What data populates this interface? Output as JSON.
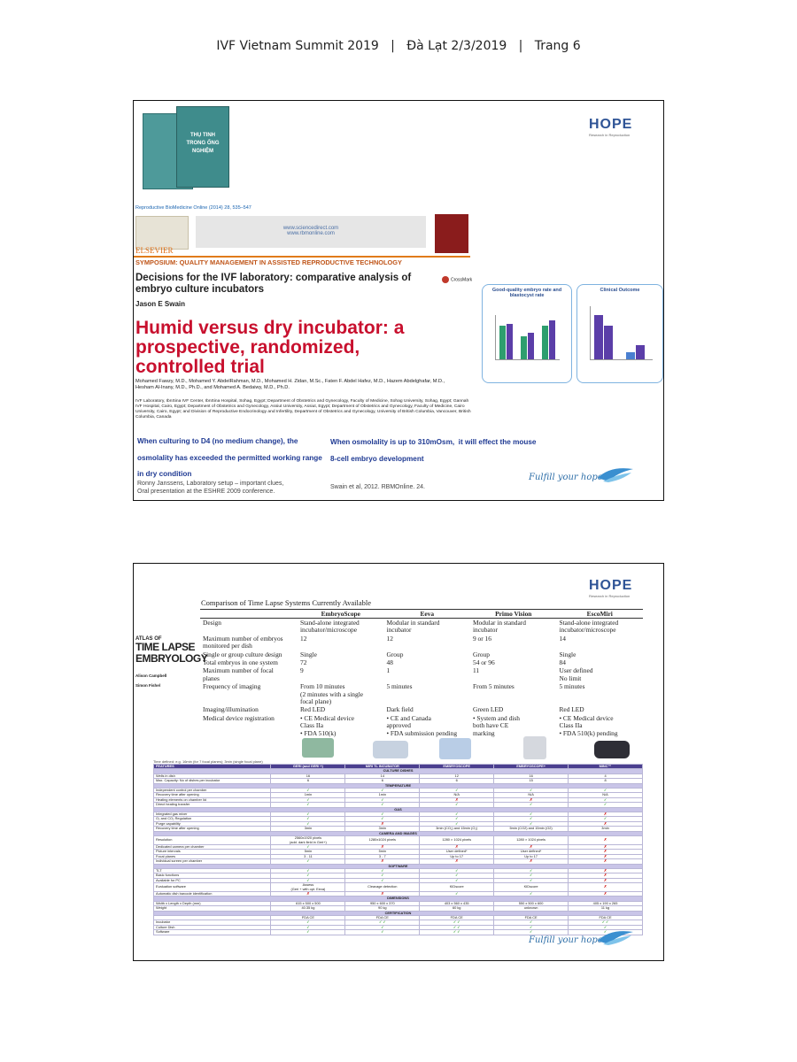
{
  "header": {
    "text": "IVF Vietnam Summit 2019   |   Đà Lạt 2/3/2019   |   Trang 6"
  },
  "slide1": {
    "book_title": "THỤ TINH TRONG ỐNG NGHIỆM",
    "journal_ref": "Reproductive BioMedicine Online (2014) 28, 535–547",
    "urls": "www.sciencedirect.com\nwww.rbmonline.com",
    "publisher": "ELSEVIER",
    "section": "SYMPOSIUM: QUALITY MANAGEMENT IN ASSISTED REPRODUCTIVE TECHNOLOGY",
    "paper_title": "Decisions for the IVF laboratory: comparative analysis of embryo culture incubators",
    "crossmark": "CrossMark",
    "paper_author": "Jason E Swain",
    "trial_title": "Humid versus dry incubator: a prospective, randomized, controlled trial",
    "trial_authors": "Mohamed Fawzy, M.D., Mohamed Y. AbdelRahman, M.D., Mohamed H. Zidan, M.Sc., Faten F. Abdel Hafez, M.D., Hazem Abdelghafar, M.D., Hesham Al-Inany, M.D., Ph.D., and Mohamed A. Bedaiwy, M.D., Ph.D.",
    "trial_affiliations": "IVF Laboratory, IbnSina IVF Center, IbnSina Hospital, Sohag, Egypt; Department of Obstetrics and Gynecology, Faculty of Medicine, Sohag University, Sohag, Egypt; Gannah IVF Hospital, Cairo, Egypt; Department of Obstetrics and Gynecology, Assiut University, Assiut, Egypt; Department of Obstetrics and Gynecology, Faculty of Medicine, Cairo University, Cairo, Egypt; and Division of Reproductive Endocrinology and Infertility, Department of Obstetrics and Gynecology, University of British Columbia, Vancouver, British Columbia, Canada",
    "logo": "HOPE",
    "logo_sub": "Research in Reproduction",
    "chart1_title": "Good-quality embryo rate and blastocyst rate",
    "chart2_title": "Clinical Outcome",
    "left_note": [
      "When culturing to D4 (no medium change), the",
      "osmolality has exceeded the permitted working range",
      "in dry condition"
    ],
    "left_source": "Ronny Janssens, Laboratory setup – important clues,\nOral presentation at the ESHRE 2009 conference.",
    "right_note": [
      "When osmolality is up to 310mOsm,  it will effect the mouse",
      "8-cell embryo development"
    ],
    "right_source": "Swain et al, 2012. RBMOnline. 24.",
    "tagline": "Fulfill your hope"
  },
  "slide2": {
    "logo": "HOPE",
    "logo_sub": "Research in Reproduction",
    "book": {
      "atlas": "ATLAS OF",
      "title": "TIME LAPSE\nEMBRYOLOGY",
      "editor1": "Alison Campbell",
      "editor2": "Simon Fishel"
    },
    "comparison": {
      "title": "Comparison of Time Lapse Systems Currently Available",
      "columns": [
        "",
        "EmbryoScope",
        "Eeva",
        "Primo Vision",
        "EscoMiri"
      ],
      "rows": [
        [
          "Design",
          "Stand-alone integrated\nincubator/microscope",
          "Modular in standard\nincubator",
          "Modular in standard\nincubator",
          "Stand-alone integrated\nincubator/microscope"
        ],
        [
          "Maximum number of embryos\n   monitored per dish",
          "12",
          "12",
          "9 or 16",
          "14"
        ],
        [
          "Single or group culture design",
          "Single",
          "Group",
          "Group",
          "Single"
        ],
        [
          "Total embryos in one system",
          "72",
          "48",
          "54 or 96",
          "84"
        ],
        [
          "Maximum number of focal\n   planes",
          "9",
          "1",
          "11",
          "User defined\nNo limit"
        ],
        [
          "Frequency of imaging",
          "From 10 minutes\n(2 minutes with a single\nfocal plane)",
          "5 minutes",
          "From 5 minutes",
          "5 minutes"
        ],
        [
          "Imaging/illumination",
          "Red LED",
          "Dark field",
          "Green LED",
          "Red LED"
        ],
        [
          "Medical device registration",
          "  • CE Medical device\n     Class IIa\n  • FDA 510(k)",
          "  • CE and Canada\n     approved\n  • FDA submission pending",
          "  • System and dish\n     both have CE\n     marking",
          "  • CE Medical device\n     Class IIa\n  • FDA 510(k) pending"
        ]
      ]
    },
    "features": {
      "note": "Time defined: e.g. 16min (for 7 focal planes); 3min (single focal plane)",
      "columns": [
        "FEATURES",
        "GERI (and GERI +)",
        "MIRI TL INCUBATOR",
        "EMBRYOSCOPE",
        "EMBRYOSCOPE+",
        "MINC™"
      ],
      "sections": [
        {
          "title": "CULTURE DISHES",
          "rows": [
            [
              "Wells in dish",
              "16",
              "14",
              "12",
              "16",
              "4"
            ],
            [
              "Max. Capacity: No of dishes per incubator",
              "6",
              "6",
              "6",
              "15",
              "8"
            ]
          ]
        },
        {
          "title": "TEMPERATURE",
          "rows": [
            [
              "Independent control per chamber",
              "✓",
              "✓",
              "✓",
              "✓",
              "✓"
            ],
            [
              "Recovery time after opening",
              "1min",
              "1min",
              "N/A",
              "N/A",
              "N/A"
            ],
            [
              "Heating elements on chamber lid",
              "✓",
              "✓",
              "✗",
              "✗",
              "✓"
            ],
            [
              "Direct heating transfer",
              "✓",
              "✓",
              "✓",
              "✓",
              "✓"
            ]
          ]
        },
        {
          "title": "GAS",
          "rows": [
            [
              "Integrated gas mixer",
              "✓",
              "✓",
              "✓",
              "✓",
              "✗"
            ],
            [
              "O₂ and CO₂ Regulation",
              "✓",
              "✓",
              "✓",
              "✓",
              "✓"
            ],
            [
              "Purge capability",
              "✓",
              "✗",
              "✓",
              "✓",
              "✗"
            ],
            [
              "Recovery time after opening",
              "3min",
              "3min",
              "3min (CO₂) and 15min (O₂)",
              "5min (CO2) and 15min (O2)",
              "3min"
            ]
          ]
        },
        {
          "title": "CAMERA AND IMAGES",
          "rows": [
            [
              "Resolution",
              "2560x1920 pixels\n(add. dark field in Geri+)",
              "1280x1024 pixels",
              "1280 × 1024 pixels",
              "1280 × 1024 pixels",
              "✗"
            ],
            [
              "Dedicated camera per chamber",
              "✓",
              "✗",
              "✗",
              "✗",
              "✗"
            ],
            [
              "Picture intervals",
              "5min",
              "5min",
              "User defined*",
              "User defined*",
              "✗"
            ],
            [
              "Focal planes",
              "3 - 11",
              "3 - 7",
              "Up to 17",
              "Up to 17",
              "✗"
            ],
            [
              "Individual screen per chamber",
              "✓",
              "✗",
              "✗",
              "✗",
              "✗"
            ]
          ]
        },
        {
          "title": "SOFTWARE",
          "rows": [
            [
              "TLT",
              "✓",
              "✓",
              "✓",
              "✓",
              "✗"
            ],
            [
              "Basic functions",
              "✓",
              "✓",
              "✓",
              "✓",
              "✗"
            ],
            [
              "Available for PC",
              "✓",
              "✓",
              "✓",
              "✓",
              "✗"
            ],
            [
              "Evaluation software",
              "Assess\n(Geri + with opt. Eeva)",
              "Cleavage detection",
              "KIDscore",
              "KIDscore",
              "✗"
            ],
            [
              "Automatic dish barcode identification",
              "✗",
              "✗",
              "✓",
              "✓",
              "✗"
            ]
          ]
        },
        {
          "title": "DIMENSIONS",
          "rows": [
            [
              "Width x Length x Depth (mm)",
              "615 x 500 x 500",
              "950 x 600 x 370",
              "403 x 560 x 435",
              "550 x 500 x 600",
              "405 x 190 x 265"
            ],
            [
              "Weight",
              "40.35 kg",
              "90 kg",
              "60 kg",
              "unknown",
              "11 kg"
            ]
          ]
        },
        {
          "title": "CERTIFICATION",
          "rows": [
            [
              "",
              "FDA    CE",
              "FDA    CE",
              "FDA    CE",
              "FDA    CE",
              "FDA    CE"
            ],
            [
              "Incubator",
              "✓",
              "✓  ✓",
              "✓  ✓",
              "✓",
              "✓  ✓"
            ],
            [
              "Culture Dish",
              "✓",
              "✓",
              "✓  ✓",
              "✓",
              "✓"
            ],
            [
              "Software",
              "✓",
              "✓",
              "✓  ✓",
              "✓",
              "✓"
            ]
          ]
        }
      ]
    },
    "tagline": "Fulfill your hope"
  }
}
